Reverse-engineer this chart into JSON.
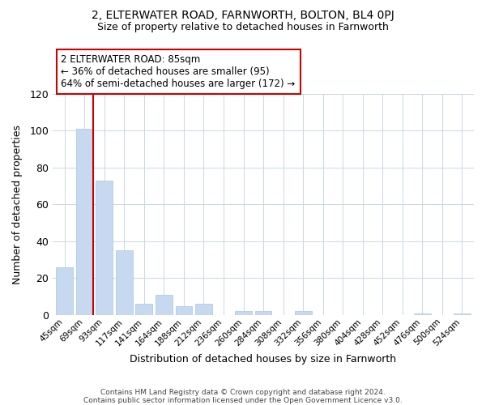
{
  "title": "2, ELTERWATER ROAD, FARNWORTH, BOLTON, BL4 0PJ",
  "subtitle": "Size of property relative to detached houses in Farnworth",
  "xlabel": "Distribution of detached houses by size in Farnworth",
  "ylabel": "Number of detached properties",
  "bar_labels": [
    "45sqm",
    "69sqm",
    "93sqm",
    "117sqm",
    "141sqm",
    "164sqm",
    "188sqm",
    "212sqm",
    "236sqm",
    "260sqm",
    "284sqm",
    "308sqm",
    "332sqm",
    "356sqm",
    "380sqm",
    "404sqm",
    "428sqm",
    "452sqm",
    "476sqm",
    "500sqm",
    "524sqm"
  ],
  "bar_values": [
    26,
    101,
    73,
    35,
    6,
    11,
    5,
    6,
    0,
    2,
    2,
    0,
    2,
    0,
    0,
    0,
    0,
    0,
    1,
    0,
    1
  ],
  "bar_color": "#c6d9f0",
  "bar_edge_color": "#a8c4e0",
  "highlight_color": "#cc0000",
  "annotation_title": "2 ELTERWATER ROAD: 85sqm",
  "annotation_line1": "← 36% of detached houses are smaller (95)",
  "annotation_line2": "64% of semi-detached houses are larger (172) →",
  "ylim": [
    0,
    120
  ],
  "yticks": [
    0,
    20,
    40,
    60,
    80,
    100,
    120
  ],
  "vline_x": 1.45,
  "footer1": "Contains HM Land Registry data © Crown copyright and database right 2024.",
  "footer2": "Contains public sector information licensed under the Open Government Licence v3.0.",
  "background_color": "#ffffff",
  "grid_color": "#c8d8e8",
  "annotation_box_color": "#ffffff",
  "annotation_box_edge": "#cc0000"
}
